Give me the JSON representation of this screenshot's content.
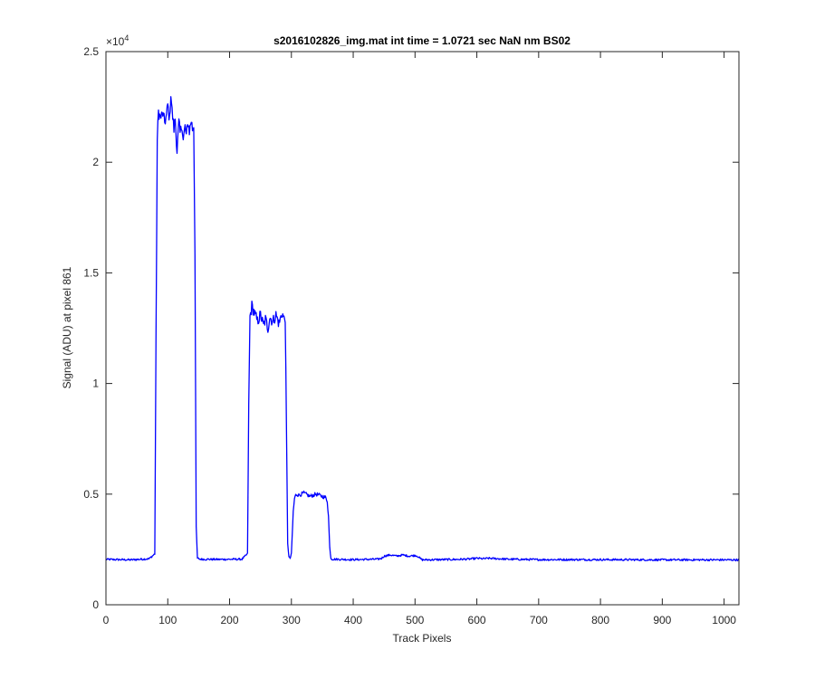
{
  "chart_data": {
    "type": "line",
    "title": "s2016102826_img.mat int time = 1.0721 sec  NaN nm BS02",
    "xlabel": "Track Pixels",
    "ylabel": "Signal (ADU) at pixel 861",
    "y_exponent_label": "×10",
    "y_exponent_power": "4",
    "xlim": [
      0,
      1024
    ],
    "ylim": [
      0,
      25000
    ],
    "xticks": [
      0,
      100,
      200,
      300,
      400,
      500,
      600,
      700,
      800,
      900,
      1000
    ],
    "xtick_labels": [
      "0",
      "100",
      "200",
      "300",
      "400",
      "500",
      "600",
      "700",
      "800",
      "900",
      "1000"
    ],
    "yticks": [
      0,
      5000,
      10000,
      15000,
      20000,
      25000
    ],
    "ytick_labels": [
      "0",
      "0.5",
      "1",
      "1.5",
      "2",
      "2.5"
    ],
    "grid": false,
    "line_color": "#0000ff",
    "series": [
      {
        "x": [
          0,
          40,
          70,
          79,
          81,
          83,
          85,
          88,
          92,
          95,
          98,
          100,
          103,
          105,
          107,
          110,
          112,
          115,
          118,
          120,
          123,
          125,
          128,
          130,
          133,
          135,
          138,
          140,
          142,
          144,
          146,
          148,
          152,
          180,
          220,
          229,
          231,
          233,
          236,
          240,
          245,
          250,
          255,
          258,
          262,
          265,
          270,
          275,
          280,
          285,
          288,
          290,
          292,
          294,
          296,
          298,
          300,
          303,
          305,
          307,
          309,
          312,
          320,
          330,
          340,
          350,
          355,
          358,
          360,
          362,
          364,
          366,
          400,
          440,
          446,
          450,
          460,
          470,
          480,
          490,
          500,
          504,
          508,
          512,
          540,
          570,
          590,
          600,
          610,
          620,
          650,
          700,
          800,
          900,
          1024
        ],
        "y": [
          2050,
          2030,
          2080,
          2300,
          12000,
          21000,
          22300,
          22000,
          22200,
          21800,
          22100,
          22600,
          21900,
          23100,
          22300,
          21500,
          22000,
          20500,
          21800,
          21300,
          21700,
          21000,
          21600,
          21200,
          21800,
          21400,
          21900,
          21500,
          21700,
          16000,
          3500,
          2100,
          2060,
          2050,
          2060,
          2300,
          9000,
          13000,
          13500,
          13200,
          12800,
          13100,
          12600,
          12900,
          12500,
          13000,
          12800,
          13100,
          12700,
          13200,
          12900,
          13000,
          8000,
          2800,
          2150,
          2100,
          2300,
          4200,
          4800,
          4950,
          5000,
          4950,
          5050,
          4900,
          5000,
          4900,
          4850,
          4700,
          4000,
          2600,
          2100,
          2060,
          2040,
          2060,
          2100,
          2200,
          2250,
          2200,
          2250,
          2200,
          2230,
          2200,
          2100,
          2030,
          2040,
          2050,
          2070,
          2100,
          2080,
          2100,
          2060,
          2040,
          2040,
          2030,
          2030
        ],
        "noise": 45
      }
    ]
  }
}
